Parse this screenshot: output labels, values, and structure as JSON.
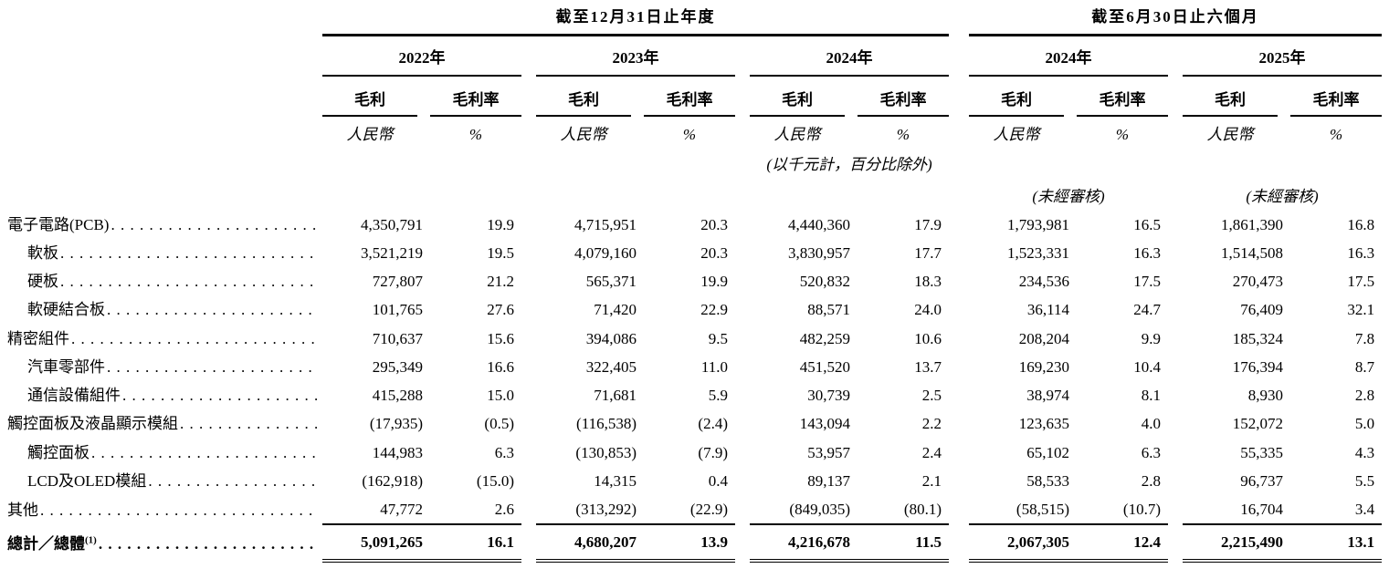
{
  "table": {
    "group_headers": [
      {
        "label": "截至12月31日止年度"
      },
      {
        "label": "截至6月30日止六個月"
      }
    ],
    "periods": [
      {
        "year": "2022年"
      },
      {
        "year": "2023年"
      },
      {
        "year": "2024年"
      },
      {
        "year": "2024年"
      },
      {
        "year": "2025年"
      }
    ],
    "metric_labels": {
      "profit": "毛利",
      "margin": "毛利率"
    },
    "unit_labels": {
      "currency": "人民幣",
      "percent": "%"
    },
    "scale_note": "(以千元計，百分比除外)",
    "unaudited_note": "(未經審核)",
    "rows": [
      {
        "label": "電子電路(PCB)",
        "indent": false,
        "values": [
          "4,350,791",
          "19.9",
          "4,715,951",
          "20.3",
          "4,440,360",
          "17.9",
          "1,793,981",
          "16.5",
          "1,861,390",
          "16.8"
        ]
      },
      {
        "label": "軟板",
        "indent": true,
        "values": [
          "3,521,219",
          "19.5",
          "4,079,160",
          "20.3",
          "3,830,957",
          "17.7",
          "1,523,331",
          "16.3",
          "1,514,508",
          "16.3"
        ]
      },
      {
        "label": "硬板",
        "indent": true,
        "values": [
          "727,807",
          "21.2",
          "565,371",
          "19.9",
          "520,832",
          "18.3",
          "234,536",
          "17.5",
          "270,473",
          "17.5"
        ]
      },
      {
        "label": "軟硬結合板",
        "indent": true,
        "values": [
          "101,765",
          "27.6",
          "71,420",
          "22.9",
          "88,571",
          "24.0",
          "36,114",
          "24.7",
          "76,409",
          "32.1"
        ]
      },
      {
        "label": "精密組件",
        "indent": false,
        "values": [
          "710,637",
          "15.6",
          "394,086",
          "9.5",
          "482,259",
          "10.6",
          "208,204",
          "9.9",
          "185,324",
          "7.8"
        ]
      },
      {
        "label": "汽車零部件",
        "indent": true,
        "values": [
          "295,349",
          "16.6",
          "322,405",
          "11.0",
          "451,520",
          "13.7",
          "169,230",
          "10.4",
          "176,394",
          "8.7"
        ]
      },
      {
        "label": "通信設備組件",
        "indent": true,
        "values": [
          "415,288",
          "15.0",
          "71,681",
          "5.9",
          "30,739",
          "2.5",
          "38,974",
          "8.1",
          "8,930",
          "2.8"
        ]
      },
      {
        "label": "觸控面板及液晶顯示模組",
        "indent": false,
        "values": [
          "(17,935)",
          "(0.5)",
          "(116,538)",
          "(2.4)",
          "143,094",
          "2.2",
          "123,635",
          "4.0",
          "152,072",
          "5.0"
        ]
      },
      {
        "label": "觸控面板",
        "indent": true,
        "values": [
          "144,983",
          "6.3",
          "(130,853)",
          "(7.9)",
          "53,957",
          "2.4",
          "65,102",
          "6.3",
          "55,335",
          "4.3"
        ]
      },
      {
        "label": "LCD及OLED模組",
        "indent": true,
        "values": [
          "(162,918)",
          "(15.0)",
          "14,315",
          "0.4",
          "89,137",
          "2.1",
          "58,533",
          "2.8",
          "96,737",
          "5.5"
        ]
      },
      {
        "label": "其他",
        "indent": false,
        "values": [
          "47,772",
          "2.6",
          "(313,292)",
          "(22.9)",
          "(849,035)",
          "(80.1)",
          "(58,515)",
          "(10.7)",
          "16,704",
          "3.4"
        ]
      }
    ],
    "total": {
      "label": "總計／總體",
      "footnote": "(1)",
      "values": [
        "5,091,265",
        "16.1",
        "4,680,207",
        "13.9",
        "4,216,678",
        "11.5",
        "2,067,305",
        "12.4",
        "2,215,490",
        "13.1"
      ]
    }
  }
}
